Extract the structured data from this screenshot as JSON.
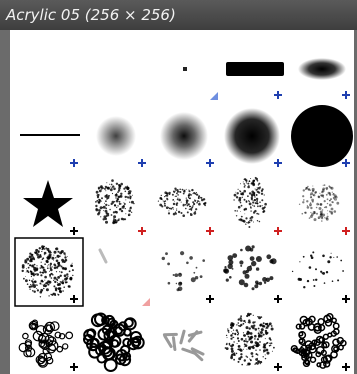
{
  "header": {
    "title": "Acrylic 05 (256 × 256)"
  }
}
